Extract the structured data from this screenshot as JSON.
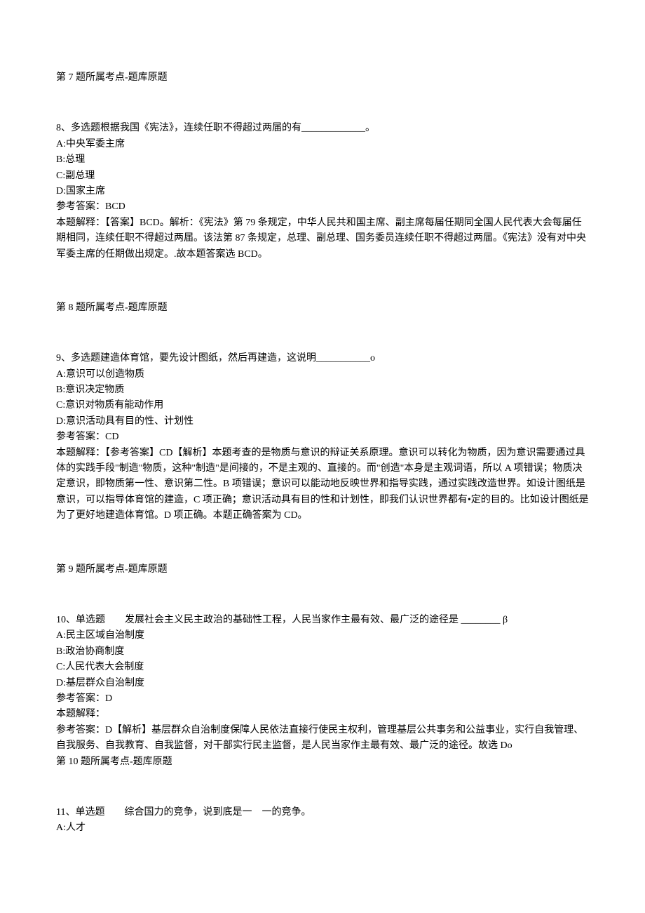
{
  "q7": {
    "ref": "第 7 题所属考点-题库原题"
  },
  "q8": {
    "question_prefix": "8、多选题根据我国《宪法》，连续任职不得超过两届的有",
    "question_blank": "_____________。",
    "option_a": "A:中央军委主席",
    "option_b": "B:总理",
    "option_c": "C:副总理",
    "option_d": "D:国家主席",
    "answer_ref": "参考答案：BCD",
    "explanation": "本题解释：【答案】BCD。解析：《宪法》第 79 条规定，中华人民共和国主席、副主席每届任期同全国人民代表大会每届任期相同，连续任职不得超过两届。该法第 87 条规定，总理、副总理、国务委员连续任职不得超过两届。《宪法》没有对中央军委主席的任期做出规定。.故本题答案选 BCD。",
    "ref": "第 8 题所属考点-题库原题"
  },
  "q9": {
    "question_prefix": "9、多选题建造体育馆，要先设计图纸，然后再建造，这说明",
    "question_blank": "___________o",
    "option_a": "A:意识可以创造物质",
    "option_b": "B:意识决定物质",
    "option_c": "C:意识对物质有能动作用",
    "option_d": "D:意识活动具有目的性、计划性",
    "answer_ref": "参考答案：CD",
    "explanation": "本题解释：【参考答案】CD【解析】本题考查的是物质与意识的辩证关系原理。意识可以转化为物质，因为意识需要通过具体的实践手段\"制造\"物质，这种\"制造\"是间接的，不是主观的、直接的。而\"创造\"本身是主观词语，所以 A 项错误；物质决定意识，即物质第一性、意识第二性。B 项错误；意识可以能动地反映世界和指导实践，通过实践改造世界。如设计图纸是意识，可以指导体育馆的建造，C 项正确；意识活动具有目的性和计划性，即我们认识世界都有•定的目的。比如设计图纸是为了更好地建造体育馆。D 项正确。本题正确答案为 CD。",
    "ref": "第 9 题所属考点-题库原题"
  },
  "q10": {
    "question_prefix": "10、单选题  发展社会主义民主政治的基础性工程，人民当家作主最有效、最广泛的途径是 ",
    "question_blank": "________ β",
    "option_a": "A:民主区域自治制度",
    "option_b": "B:政治协商制度",
    "option_c": "C:人民代表大会制度",
    "option_d": "D:基层群众自治制度",
    "answer_ref": "参考答案：D",
    "explanation_label": "本题解释：",
    "explanation": "参考答案：D【解析】基层群众自治制度保障人民依法直接行使民主权利，管理基层公共事务和公益事业，实行自我管理、自我服务、自我教育、自我监督，对干部实行民主监督，是人民当家作主最有效、最广泛的途径。故选 Do",
    "ref": "第 10 题所属考点-题库原题"
  },
  "q11": {
    "question": "11、单选题  综合国力的竞争，说到底是一 一的竞争。",
    "option_a": "A:人才"
  }
}
